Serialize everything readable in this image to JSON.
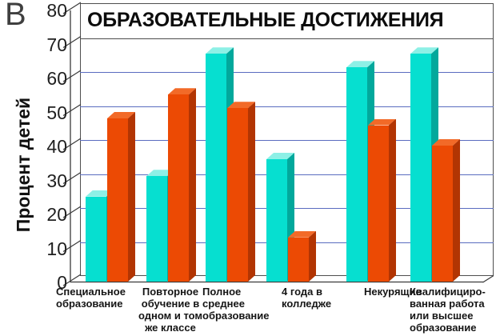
{
  "figure": {
    "corner_label": "В"
  },
  "chart_data": {
    "type": "bar",
    "title": "ОБРАЗОВАТЕЛЬНЫЕ ДОСТИЖЕНИЯ",
    "xlabel": "",
    "ylabel": "Процент детей",
    "ylim": [
      0,
      80
    ],
    "ytick_step": 10,
    "yticks": [
      0,
      10,
      20,
      30,
      40,
      50,
      60,
      70,
      80
    ],
    "grid": true,
    "legend": "none",
    "style": "3d-grouped-bars",
    "categories": [
      "Специальное\nобразование",
      "Повторное\nобучение в\nодном и том\nже классе",
      "Полное\nсреднее\nобразование",
      "4 года в\nколледже",
      "Некурящие",
      "Квалифициро-\nванная работа\nили высшее\nобразование"
    ],
    "series": [
      {
        "name": "series_1",
        "color": "#06dfd0",
        "values": [
          25,
          31,
          67,
          36,
          63,
          67
        ]
      },
      {
        "name": "series_2",
        "color": "#ec4a04",
        "values": [
          48,
          55,
          51,
          13,
          46,
          40
        ]
      }
    ],
    "colors": {
      "gridline": "#5a6cc0",
      "axis": "#3a3a3a",
      "title_text": "#0c0c0c"
    }
  }
}
